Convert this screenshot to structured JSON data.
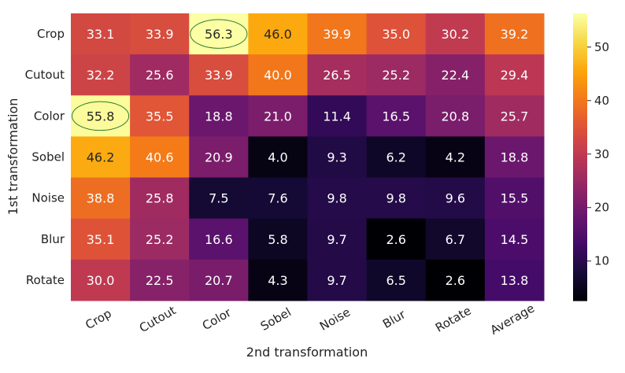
{
  "chart_data": {
    "type": "heatmap",
    "title": "",
    "xlabel": "2nd transformation",
    "ylabel": "1st transformation",
    "x_categories": [
      "Crop",
      "Cutout",
      "Color",
      "Sobel",
      "Noise",
      "Blur",
      "Rotate",
      "Average"
    ],
    "y_categories": [
      "Crop",
      "Cutout",
      "Color",
      "Sobel",
      "Noise",
      "Blur",
      "Rotate"
    ],
    "values": [
      [
        33.1,
        33.9,
        56.3,
        46.0,
        39.9,
        35.0,
        30.2,
        39.2
      ],
      [
        32.2,
        25.6,
        33.9,
        40.0,
        26.5,
        25.2,
        22.4,
        29.4
      ],
      [
        55.8,
        35.5,
        18.8,
        21.0,
        11.4,
        16.5,
        20.8,
        25.7
      ],
      [
        46.2,
        40.6,
        20.9,
        4.0,
        9.3,
        6.2,
        4.2,
        18.8
      ],
      [
        38.8,
        25.8,
        7.5,
        7.6,
        9.8,
        9.8,
        9.6,
        15.5
      ],
      [
        35.1,
        25.2,
        16.6,
        5.8,
        9.7,
        2.6,
        6.7,
        14.5
      ],
      [
        30.0,
        22.5,
        20.7,
        4.3,
        9.7,
        6.5,
        2.6,
        13.8
      ]
    ],
    "labels": [
      [
        "33.1",
        "33.9",
        "56.3",
        "46.0",
        "39.9",
        "35.0",
        "30.2",
        "39.2"
      ],
      [
        "32.2",
        "25.6",
        "33.9",
        "40.0",
        "26.5",
        "25.2",
        "22.4",
        "29.4"
      ],
      [
        "55.8",
        "35.5",
        "18.8",
        "21.0",
        "11.4",
        "16.5",
        "20.8",
        "25.7"
      ],
      [
        "46.2",
        "40.6",
        "20.9",
        "4.0",
        "9.3",
        "6.2",
        "4.2",
        "18.8"
      ],
      [
        "38.8",
        "25.8",
        "7.5",
        "7.6",
        "9.8",
        "9.8",
        "9.6",
        "15.5"
      ],
      [
        "35.1",
        "25.2",
        "16.6",
        "5.8",
        "9.7",
        "2.6",
        "6.7",
        "14.5"
      ],
      [
        "30.0",
        "22.5",
        "20.7",
        "4.3",
        "9.7",
        "6.5",
        "2.6",
        "13.8"
      ]
    ],
    "colormap": "inferno",
    "color_range": [
      2.6,
      56.3
    ],
    "colorbar_ticks": [
      10,
      20,
      30,
      40,
      50
    ],
    "colorbar_tick_labels": [
      "10",
      "20",
      "30",
      "40",
      "50"
    ],
    "highlighted_cells": [
      {
        "row": 0,
        "col": 2,
        "shape": "ellipse",
        "color": "#2e7d32"
      },
      {
        "row": 2,
        "col": 0,
        "shape": "ellipse",
        "color": "#2e7d32"
      }
    ]
  }
}
